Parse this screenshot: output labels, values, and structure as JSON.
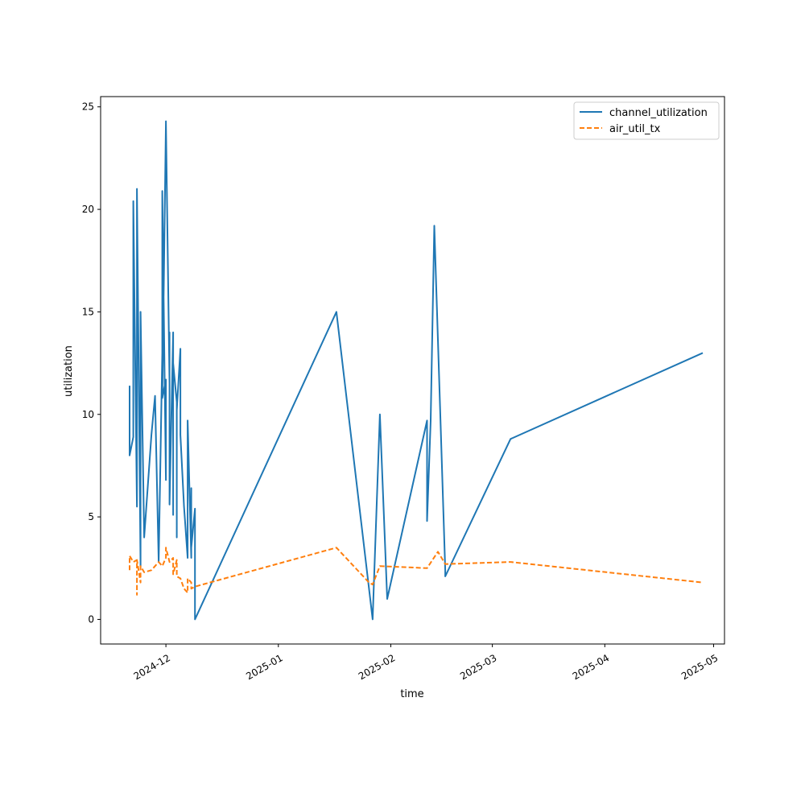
{
  "chart_data": {
    "type": "line",
    "title": "",
    "xlabel": "time",
    "ylabel": "utilization",
    "xlim": [
      "2024-11-13",
      "2025-05-04"
    ],
    "ylim": [
      -1.2,
      25.5
    ],
    "grid": false,
    "legend_position": "top-right",
    "x_ticks": [
      {
        "date": "2024-12-01",
        "label": "2024-12"
      },
      {
        "date": "2025-01-01",
        "label": "2025-01"
      },
      {
        "date": "2025-02-01",
        "label": "2025-02"
      },
      {
        "date": "2025-03-01",
        "label": "2025-03"
      },
      {
        "date": "2025-04-01",
        "label": "2025-04"
      },
      {
        "date": "2025-05-01",
        "label": "2025-05"
      }
    ],
    "y_ticks": [
      0,
      5,
      10,
      15,
      20,
      25
    ],
    "series": [
      {
        "name": "channel_utilization",
        "color": "#1f77b4",
        "style": "solid",
        "points": [
          [
            "2024-11-21",
            11.4
          ],
          [
            "2024-11-21",
            8.0
          ],
          [
            "2024-11-22",
            8.9
          ],
          [
            "2024-11-22",
            20.4
          ],
          [
            "2024-11-23",
            5.5
          ],
          [
            "2024-11-23",
            21.0
          ],
          [
            "2024-11-24",
            2.6
          ],
          [
            "2024-11-24",
            15.0
          ],
          [
            "2024-11-25",
            4.0
          ],
          [
            "2024-11-27",
            9.0
          ],
          [
            "2024-11-28",
            10.9
          ],
          [
            "2024-11-29",
            2.8
          ],
          [
            "2024-11-30",
            13.0
          ],
          [
            "2024-11-30",
            20.9
          ],
          [
            "2024-12-01",
            6.8
          ],
          [
            "2024-12-01",
            11.7
          ],
          [
            "2024-11-30",
            10.8
          ],
          [
            "2024-12-01",
            24.2
          ],
          [
            "2024-12-01",
            24.3
          ],
          [
            "2024-12-02",
            11.5
          ],
          [
            "2024-12-02",
            9.8
          ],
          [
            "2024-12-02",
            14.0
          ],
          [
            "2024-12-02",
            5.6
          ],
          [
            "2024-12-03",
            14.0
          ],
          [
            "2024-12-03",
            5.1
          ],
          [
            "2024-12-03",
            12.5
          ],
          [
            "2024-12-04",
            10.6
          ],
          [
            "2024-12-04",
            4.0
          ],
          [
            "2024-12-04",
            10.2
          ],
          [
            "2024-12-05",
            13.2
          ],
          [
            "2024-12-05",
            9.0
          ],
          [
            "2024-12-06",
            5.5
          ],
          [
            "2024-12-07",
            3.0
          ],
          [
            "2024-12-07",
            9.7
          ],
          [
            "2024-12-08",
            3.0
          ],
          [
            "2024-12-08",
            6.4
          ],
          [
            "2024-12-08",
            3.5
          ],
          [
            "2024-12-09",
            5.4
          ],
          [
            "2024-12-09",
            2.9
          ],
          [
            "2024-12-09",
            0.0
          ],
          [
            "2025-01-17",
            15.0
          ],
          [
            "2025-01-27",
            0.0
          ],
          [
            "2025-01-29",
            10.0
          ],
          [
            "2025-01-31",
            1.0
          ],
          [
            "2025-02-11",
            9.7
          ],
          [
            "2025-02-11",
            4.8
          ],
          [
            "2025-02-12",
            9.7
          ],
          [
            "2025-02-13",
            19.2
          ],
          [
            "2025-02-16",
            2.4
          ],
          [
            "2025-02-16",
            2.1
          ],
          [
            "2025-03-06",
            8.8
          ],
          [
            "2025-04-28",
            13.0
          ]
        ]
      },
      {
        "name": "air_util_tx",
        "color": "#ff7f0e",
        "style": "dashed",
        "points": [
          [
            "2024-11-21",
            2.4
          ],
          [
            "2024-11-21",
            3.1
          ],
          [
            "2024-11-22",
            2.8
          ],
          [
            "2024-11-23",
            2.9
          ],
          [
            "2024-11-23",
            1.2
          ],
          [
            "2024-11-23",
            2.9
          ],
          [
            "2024-11-24",
            1.8
          ],
          [
            "2024-11-24",
            2.6
          ],
          [
            "2024-11-25",
            2.3
          ],
          [
            "2024-11-27",
            2.4
          ],
          [
            "2024-11-29",
            2.8
          ],
          [
            "2024-11-30",
            2.6
          ],
          [
            "2024-12-01",
            3.0
          ],
          [
            "2024-12-01",
            3.5
          ],
          [
            "2024-12-02",
            2.8
          ],
          [
            "2024-12-03",
            3.0
          ],
          [
            "2024-12-03",
            2.2
          ],
          [
            "2024-12-04",
            2.9
          ],
          [
            "2024-12-04",
            2.1
          ],
          [
            "2024-12-05",
            2.0
          ],
          [
            "2024-12-06",
            1.5
          ],
          [
            "2024-12-07",
            1.3
          ],
          [
            "2024-12-07",
            2.0
          ],
          [
            "2024-12-08",
            1.8
          ],
          [
            "2024-12-08",
            1.5
          ],
          [
            "2024-12-09",
            1.6
          ],
          [
            "2025-01-17",
            3.5
          ],
          [
            "2025-01-26",
            1.8
          ],
          [
            "2025-01-27",
            1.7
          ],
          [
            "2025-01-29",
            2.6
          ],
          [
            "2025-02-11",
            2.5
          ],
          [
            "2025-02-14",
            3.3
          ],
          [
            "2025-02-16",
            2.7
          ],
          [
            "2025-03-06",
            2.8
          ],
          [
            "2025-04-28",
            1.8
          ]
        ]
      }
    ]
  }
}
